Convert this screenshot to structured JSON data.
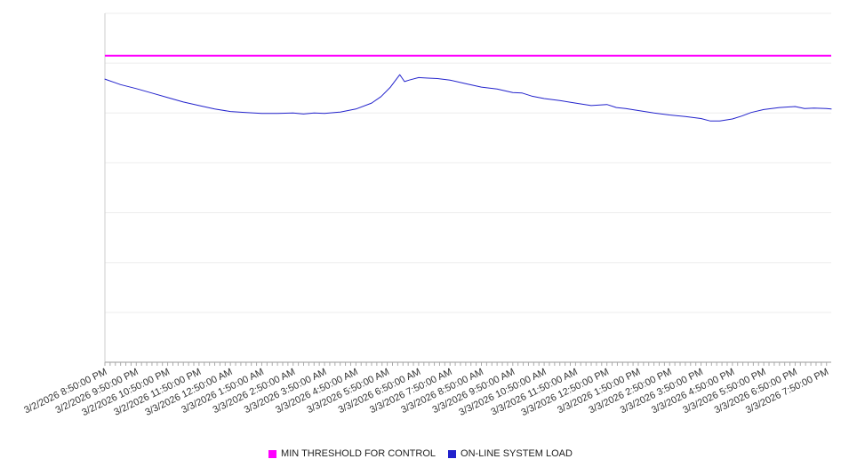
{
  "chart_data": {
    "type": "line",
    "x_axis": {
      "tick_labels": [
        "3/2/2026 8:50:00 PM",
        "3/2/2026 9:50:00 PM",
        "3/2/2026 10:50:00 PM",
        "3/2/2026 11:50:00 PM",
        "3/3/2026 12:50:00 AM",
        "3/3/2026 1:50:00 AM",
        "3/3/2026 2:50:00 AM",
        "3/3/2026 3:50:00 AM",
        "3/3/2026 4:50:00 AM",
        "3/3/2026 5:50:00 AM",
        "3/3/2026 6:50:00 AM",
        "3/3/2026 7:50:00 AM",
        "3/3/2026 8:50:00 AM",
        "3/3/2026 9:50:00 AM",
        "3/3/2026 10:50:00 AM",
        "3/3/2026 11:50:00 AM",
        "3/3/2026 12:50:00 PM",
        "3/3/2026 1:50:00 PM",
        "3/3/2026 2:50:00 PM",
        "3/3/2026 3:50:00 PM",
        "3/3/2026 4:50:00 PM",
        "3/3/2026 5:50:00 PM",
        "3/3/2026 6:50:00 PM",
        "3/3/2026 7:50:00 PM"
      ],
      "range_hours": [
        0,
        23.15
      ],
      "minor_tick_interval_hours": 0.16667,
      "label_rotation_deg": -26
    },
    "y_axis": {
      "ylim": [
        0,
        7
      ],
      "labels_visible": false,
      "gridline_values": [
        1,
        2,
        3,
        4,
        5,
        6,
        7
      ],
      "note": "y-axis is unlabeled in the source image; values are estimated in gridline units (bottom axis = 0, each gridline = 1)"
    },
    "series": [
      {
        "name": "MIN THRESHOLD FOR CONTROL",
        "type": "constant",
        "color": "#ff00ff",
        "value": 6.15
      },
      {
        "name": "ON-LINE SYSTEM LOAD",
        "type": "line",
        "color": "#2222cc",
        "t_hours": [
          0,
          0.5,
          1,
          1.5,
          2,
          2.5,
          3,
          3.5,
          4,
          4.5,
          5,
          5.5,
          6,
          6.33,
          6.67,
          7,
          7.5,
          8,
          8.5,
          8.8,
          9.1,
          9.4,
          9.55,
          9.7,
          10,
          10.3,
          10.6,
          11,
          11.5,
          12,
          12.5,
          13,
          13.3,
          13.6,
          14,
          14.5,
          15,
          15.5,
          16,
          16.3,
          16.6,
          17,
          17.5,
          18,
          18.5,
          19,
          19.3,
          19.6,
          20,
          20.3,
          20.6,
          21,
          21.5,
          22,
          22.3,
          22.6,
          23,
          23.15
        ],
        "values": [
          5.68,
          5.57,
          5.49,
          5.4,
          5.31,
          5.22,
          5.15,
          5.08,
          5.03,
          5.01,
          4.99,
          4.99,
          5.0,
          4.98,
          5.0,
          4.99,
          5.02,
          5.08,
          5.2,
          5.33,
          5.52,
          5.77,
          5.63,
          5.66,
          5.71,
          5.7,
          5.69,
          5.66,
          5.59,
          5.52,
          5.48,
          5.41,
          5.4,
          5.34,
          5.29,
          5.25,
          5.2,
          5.15,
          5.17,
          5.11,
          5.09,
          5.05,
          5.0,
          4.96,
          4.93,
          4.89,
          4.84,
          4.84,
          4.88,
          4.94,
          5.01,
          5.07,
          5.11,
          5.13,
          5.09,
          5.1,
          5.09,
          5.08
        ]
      }
    ],
    "legend_position": "bottom-center",
    "grid": true
  },
  "legend": {
    "items": [
      {
        "label": "MIN THRESHOLD FOR CONTROL",
        "color": "#ff00ff"
      },
      {
        "label": "ON-LINE SYSTEM LOAD",
        "color": "#2222cc"
      }
    ]
  },
  "colors": {
    "background": "#ffffff",
    "gridline": "#ededed",
    "axis_bottom": "#999999",
    "axis_left": "#cccccc",
    "tick": "#aaaaaa",
    "label_text": "#333333"
  }
}
